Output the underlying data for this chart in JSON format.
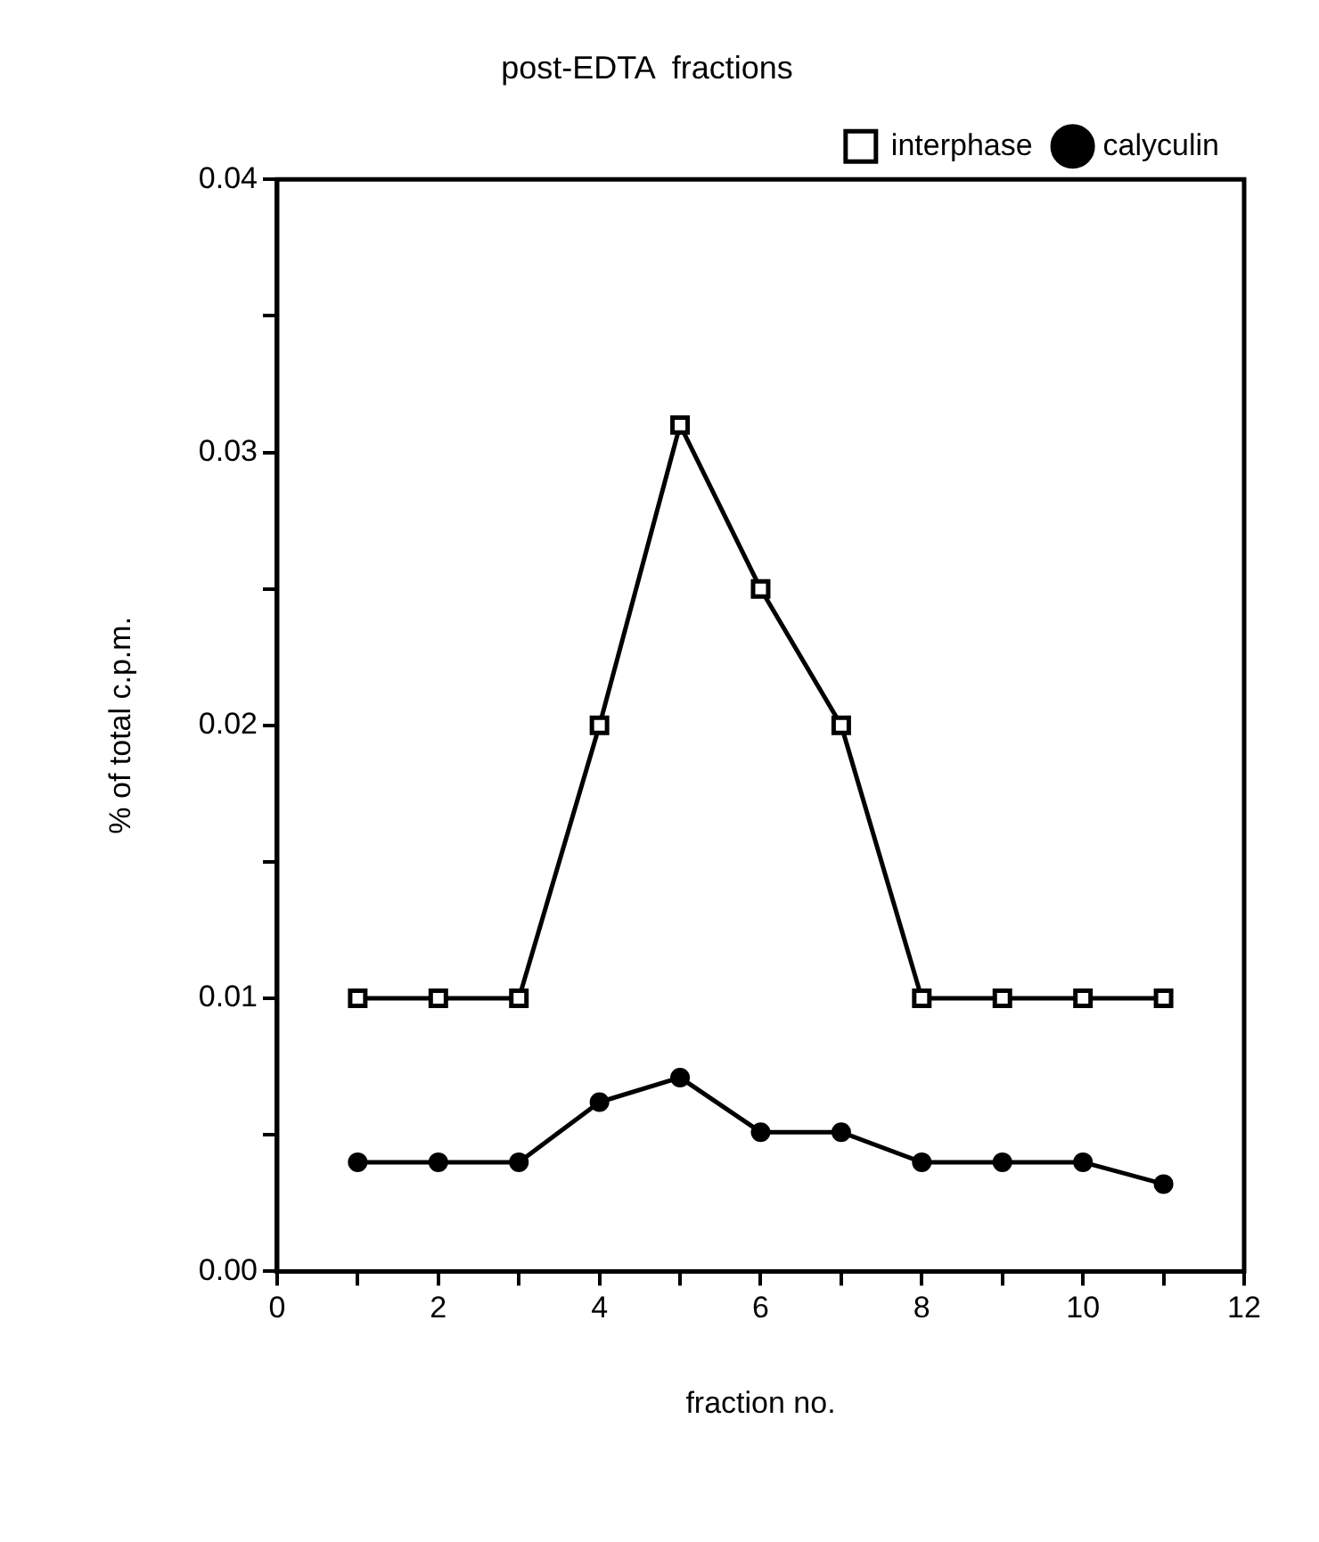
{
  "chart_data": {
    "type": "line",
    "title": "post-EDTA  fractions",
    "xlabel": "fraction no.",
    "ylabel": "% of total c.p.m.",
    "x": [
      1,
      2,
      3,
      4,
      5,
      6,
      7,
      8,
      9,
      10,
      11
    ],
    "series": [
      {
        "name": "interphase",
        "color": "#000000",
        "marker": "square",
        "values": [
          0.01,
          0.01,
          0.01,
          0.02,
          0.031,
          0.025,
          0.02,
          0.01,
          0.01,
          0.01,
          0.01
        ]
      },
      {
        "name": "calyculin",
        "color": "#000000",
        "marker": "circle",
        "values": [
          0.004,
          0.004,
          0.004,
          0.0062,
          0.0071,
          0.0051,
          0.0051,
          0.004,
          0.004,
          0.004,
          0.0032
        ]
      }
    ],
    "xlim": [
      0,
      12
    ],
    "xticks": [
      0,
      {
        "value": 1,
        "label": null
      },
      2,
      {
        "value": 3,
        "label": null
      },
      4,
      {
        "value": 5,
        "label": null
      },
      6,
      {
        "value": 7,
        "label": null
      },
      8,
      {
        "value": 9,
        "label": null
      },
      10,
      {
        "value": 11,
        "label": null
      },
      12
    ],
    "ylim": [
      0,
      0.04
    ],
    "yticks": [
      {
        "value": 0,
        "label": "0.00"
      },
      {
        "value": 0.005,
        "label": null
      },
      {
        "value": 0.01,
        "label": "0.01"
      },
      {
        "value": 0.015,
        "label": null
      },
      {
        "value": 0.02,
        "label": "0.02"
      },
      {
        "value": 0.025,
        "label": null
      },
      {
        "value": 0.03,
        "label": "0.03"
      },
      {
        "value": 0.035,
        "label": null
      },
      {
        "value": 0.04,
        "label": "0.04"
      }
    ],
    "grid": false,
    "legend": "top right",
    "line_style": "solid"
  }
}
